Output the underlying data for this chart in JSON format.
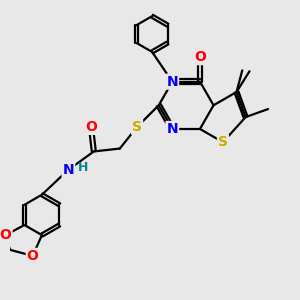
{
  "bg_color": "#e8e8e8",
  "bond_color": "#000000",
  "bond_width": 1.6,
  "atom_colors": {
    "N": "#0000ff",
    "O": "#ff0000",
    "S_thio": "#ccaa00",
    "S_link": "#ccaa00",
    "H": "#008888"
  },
  "font_size_atom": 10,
  "font_size_methyl": 8,
  "font_size_H": 9
}
